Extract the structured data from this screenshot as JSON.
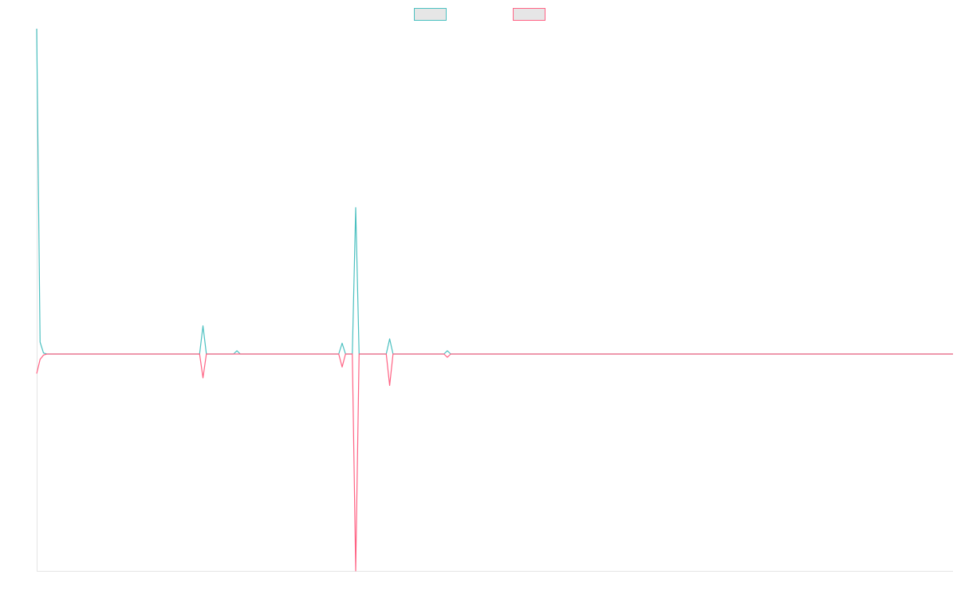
{
  "chart_data": {
    "type": "line",
    "x": [
      0,
      1,
      2,
      3,
      48,
      49,
      50,
      58,
      59,
      60,
      89,
      90,
      91,
      93,
      94,
      95,
      103,
      104,
      105,
      120,
      121,
      122,
      270
    ],
    "xlim": [
      0,
      270
    ],
    "ylim": [
      -2,
      3
    ],
    "grid": false,
    "legend": "top",
    "series": [
      {
        "color": "#4bc0c0",
        "values": [
          3,
          0.11,
          0.01,
          0,
          0,
          0.26,
          0,
          0,
          0.03,
          0,
          0,
          0.1,
          0,
          0,
          1.35,
          0,
          0,
          0.14,
          0,
          0,
          0.03,
          0,
          0
        ]
      },
      {
        "color": "#ff6384",
        "values": [
          -0.18,
          -0.05,
          -0.01,
          0,
          0,
          -0.22,
          0,
          0,
          0,
          0,
          0,
          -0.12,
          0,
          0,
          -2,
          0,
          0,
          -0.29,
          0,
          0,
          -0.03,
          0,
          0
        ]
      }
    ]
  }
}
